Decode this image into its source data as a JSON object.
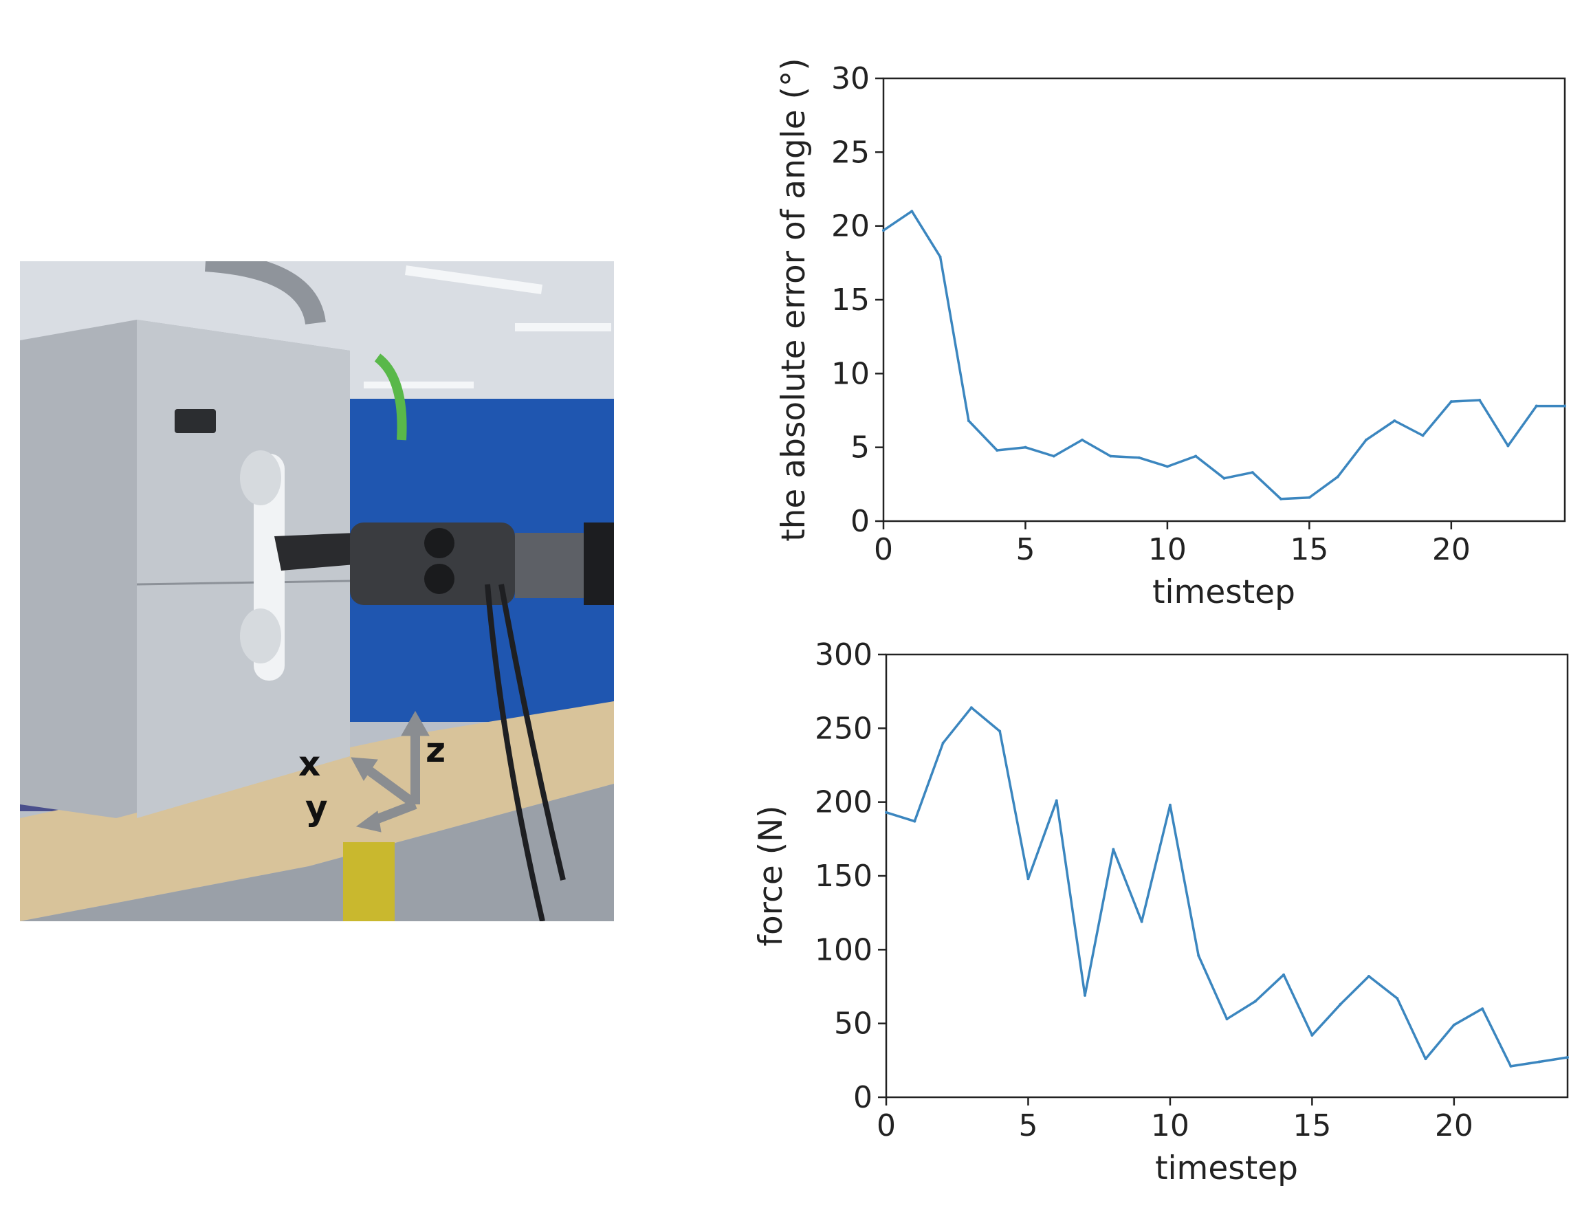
{
  "photo": {
    "axis_labels": [
      "x",
      "y",
      "z"
    ]
  },
  "chart_data": [
    {
      "type": "line",
      "xlabel": "timestep",
      "ylabel": "the absolute error of angle (°)",
      "xlim": [
        0,
        24
      ],
      "ylim": [
        0,
        30
      ],
      "xticks": [
        0,
        5,
        10,
        15,
        20
      ],
      "yticks": [
        0,
        5,
        10,
        15,
        20,
        25,
        30
      ],
      "color": "#3b86bf",
      "x": [
        0,
        1,
        2,
        3,
        4,
        5,
        6,
        7,
        8,
        9,
        10,
        11,
        12,
        13,
        14,
        15,
        16,
        17,
        18,
        19,
        20,
        21,
        22,
        23,
        24
      ],
      "y": [
        19.7,
        21.0,
        17.9,
        6.8,
        4.8,
        5.0,
        4.4,
        5.5,
        4.4,
        4.3,
        3.7,
        4.4,
        2.9,
        3.3,
        1.5,
        1.6,
        3.0,
        5.5,
        6.8,
        5.8,
        8.1,
        8.2,
        5.1,
        7.8,
        7.8
      ],
      "grid": false
    },
    {
      "type": "line",
      "xlabel": "timestep",
      "ylabel": "force (N)",
      "xlim": [
        0,
        24
      ],
      "ylim": [
        0,
        300
      ],
      "xticks": [
        0,
        5,
        10,
        15,
        20
      ],
      "yticks": [
        0,
        50,
        100,
        150,
        200,
        250,
        300
      ],
      "color": "#3b86bf",
      "x": [
        0,
        1,
        2,
        3,
        4,
        5,
        6,
        7,
        8,
        9,
        10,
        11,
        12,
        13,
        14,
        15,
        16,
        17,
        18,
        19,
        20,
        21,
        22,
        23,
        24
      ],
      "y": [
        193,
        187,
        240,
        264,
        248,
        148,
        201,
        69,
        168,
        119,
        198,
        96,
        53,
        65,
        83,
        42,
        63,
        82,
        67,
        26,
        49,
        60,
        21,
        24,
        27
      ],
      "grid": false
    }
  ]
}
